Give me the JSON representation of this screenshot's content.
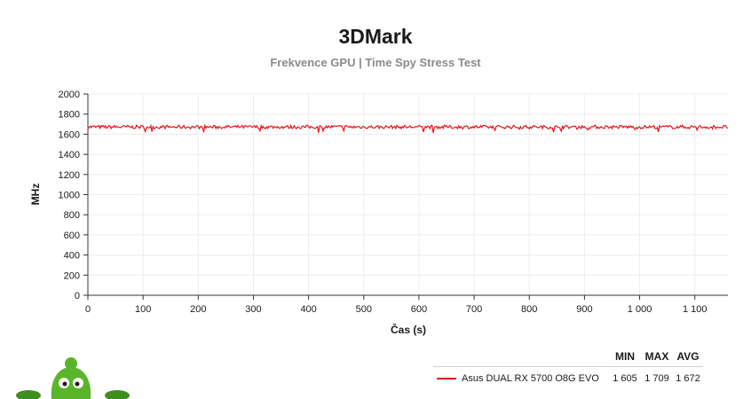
{
  "chart_data": {
    "type": "line",
    "title": "3DMark",
    "subtitle": "Frekvence GPU | Time Spy Stress Test",
    "xlabel": "Čas (s)",
    "ylabel": "MHz",
    "xlim": [
      0,
      1160
    ],
    "ylim": [
      0,
      2000
    ],
    "x_ticks": [
      "0",
      "100",
      "200",
      "300",
      "400",
      "500",
      "600",
      "700",
      "800",
      "900",
      "1 000",
      "1 100"
    ],
    "x_tick_values": [
      0,
      100,
      200,
      300,
      400,
      500,
      600,
      700,
      800,
      900,
      1000,
      1100
    ],
    "y_ticks": [
      "0",
      "200",
      "400",
      "600",
      "800",
      "1000",
      "1200",
      "1400",
      "1600",
      "1800",
      "2000"
    ],
    "y_tick_values": [
      0,
      200,
      400,
      600,
      800,
      1000,
      1200,
      1400,
      1600,
      1800,
      2000
    ],
    "grid": true,
    "legend": {
      "placement": "bottom-right",
      "headers": [
        "MIN",
        "MAX",
        "AVG"
      ]
    },
    "series": [
      {
        "name": "Asus DUAL RX 5700 O8G EVO",
        "color": "#e8141b",
        "min": 1605,
        "max": 1709,
        "avg": 1672,
        "min_label": "1 605",
        "max_label": "1 709",
        "avg_label": "1 672"
      }
    ]
  },
  "colors": {
    "series": "#e8141b",
    "grid": "#ececec",
    "axis": "#333333"
  }
}
